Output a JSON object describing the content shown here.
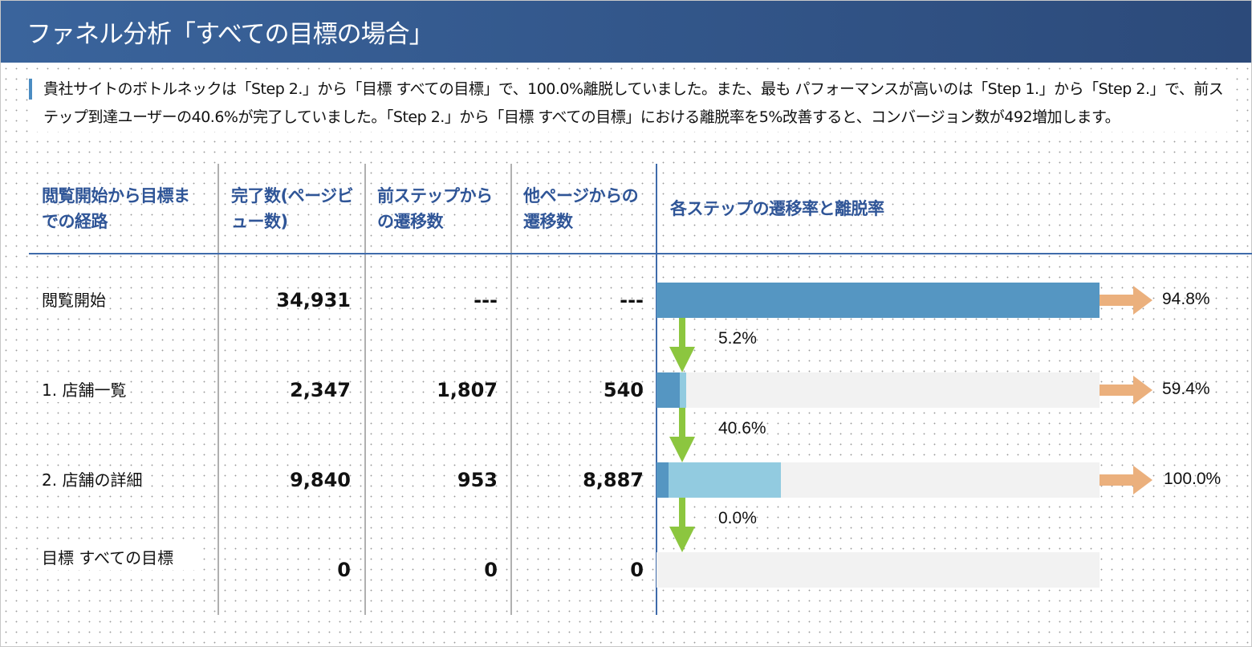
{
  "title": "ファネル分析「すべての目標の場合」",
  "summary": "貴社サイトのボトルネックは「Step 2.」から「目標 すべての目標」で、100.0%離脱していました。また、最も パフォーマンスが高いのは「Step 1.」から「Step 2.」で、前ステップ到達ユーザーの40.6%が完了していました。「Step 2.」から「目標 すべての目標」における離脱率を5%改善すると、コンバージョン数が492増加します。",
  "columns": [
    "閲覧開始から目標までの経路",
    "完了数(ページビュー数)",
    "前ステップからの遷移数",
    "他ページからの遷移数",
    "各ステップの遷移率と離脱率"
  ],
  "rows": [
    {
      "label": "閲覧開始",
      "completed": "34,931",
      "from_prev": "---",
      "from_other": "---",
      "completed_n": 34931,
      "from_prev_n": 34931,
      "from_other_n": 0,
      "exit_rate": "94.8%",
      "transition_rate": "5.2%"
    },
    {
      "label": "1. 店舗一覧",
      "completed": "2,347",
      "from_prev": "1,807",
      "from_other": "540",
      "completed_n": 2347,
      "from_prev_n": 1807,
      "from_other_n": 540,
      "exit_rate": "59.4%",
      "transition_rate": "40.6%"
    },
    {
      "label": "2. 店舗の詳細",
      "completed": "9,840",
      "from_prev": "953",
      "from_other": "8,887",
      "completed_n": 9840,
      "from_prev_n": 953,
      "from_other_n": 8887,
      "exit_rate": "100.0%",
      "transition_rate": "0.0%"
    },
    {
      "label": "目標 すべての目標",
      "completed": "0",
      "from_prev": "0",
      "from_other": "0",
      "completed_n": 0,
      "from_prev_n": 0,
      "from_other_n": 0
    }
  ],
  "colors": {
    "header": "#2f5597",
    "prev_bar": "#5596c2",
    "other_bar": "#92cbe0",
    "track": "#f2f2f2",
    "exit_arrow": "#ebb07d",
    "next_arrow": "#8cc63f"
  }
}
